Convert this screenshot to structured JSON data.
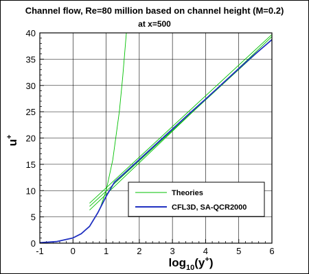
{
  "chart_data": {
    "type": "line",
    "title": "Channel flow, Re=80 million based on channel height (M=0.2)",
    "subtitle": "at x=500",
    "xlabel": {
      "base": "log",
      "sub": "10",
      "rest": "(y",
      "sup": "+",
      "close": ")"
    },
    "ylabel": {
      "base": "u",
      "sup": "+"
    },
    "xlim": [
      -1,
      6
    ],
    "ylim": [
      0,
      40
    ],
    "x_ticks": [
      "-1",
      "0",
      "1",
      "2",
      "3",
      "4",
      "5",
      "6"
    ],
    "y_ticks": [
      "0",
      "5",
      "10",
      "15",
      "20",
      "25",
      "30",
      "35",
      "40"
    ],
    "grid": true,
    "legend_position": "bottom-right",
    "series": [
      {
        "name": "Theories",
        "color": "#00c000",
        "lines": [
          {
            "x": [
              0.5,
              0.8,
              1.0,
              1.2,
              1.4,
              1.5,
              1.61
            ],
            "y": [
              3.16,
              6.31,
              10.0,
              15.85,
              25.12,
              31.62,
              40.0
            ]
          },
          {
            "x": [
              0.5,
              6.0
            ],
            "y": [
              7.0,
              38.8
            ]
          },
          {
            "x": [
              0.5,
              6.0
            ],
            "y": [
              7.6,
              39.7
            ]
          },
          {
            "x": [
              0.5,
              6.0
            ],
            "y": [
              6.3,
              39.3
            ]
          }
        ]
      },
      {
        "name": "CFL3D, SA-QCR2000",
        "color": "#2030c0",
        "x": [
          -1.0,
          -0.5,
          0.0,
          0.25,
          0.5,
          0.75,
          1.0,
          1.25,
          1.5,
          2.0,
          2.5,
          3.0,
          3.5,
          4.0,
          4.5,
          5.0,
          5.5,
          6.0
        ],
        "y": [
          0.1,
          0.3,
          1.0,
          1.8,
          3.2,
          5.8,
          8.9,
          11.6,
          13.0,
          15.9,
          18.8,
          21.7,
          24.6,
          27.4,
          30.3,
          33.2,
          36.0,
          38.7
        ]
      }
    ]
  }
}
